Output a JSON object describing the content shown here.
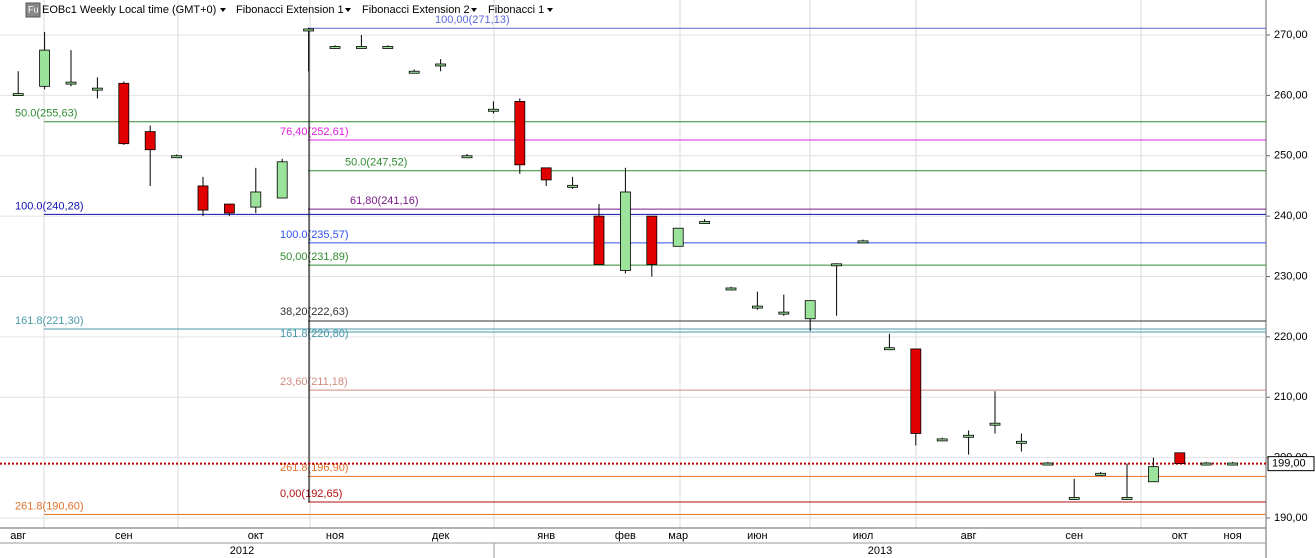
{
  "header": {
    "icon": "Fu",
    "symbol": "EOBc1 Weekly Local time (GMT+0)",
    "tools": [
      "Fibonacci Extension 1",
      "Fibonacci Extension 2",
      "Fibonacci 1"
    ]
  },
  "chart_data": {
    "type": "candlestick",
    "categories": [
      "авг",
      null,
      null,
      null,
      "сен",
      null,
      null,
      null,
      null,
      "окт",
      null,
      null,
      "ноя",
      null,
      null,
      null,
      "дек",
      null,
      null,
      null,
      "янв",
      null,
      null,
      "фев",
      null,
      "мар",
      null,
      null,
      "июн",
      null,
      null,
      null,
      "июл",
      null,
      null,
      null,
      "авг",
      null,
      null,
      null,
      "сен",
      null,
      null,
      null,
      "окт",
      null,
      "ноя"
    ],
    "open": [
      260,
      261.5,
      262,
      261,
      262,
      254,
      250,
      245,
      242,
      241.5,
      243,
      271,
      268,
      268,
      268,
      264,
      265,
      250,
      257.5,
      259,
      248,
      245,
      240,
      231,
      240,
      235,
      239,
      228,
      225,
      224,
      223,
      232,
      235.8,
      218,
      218,
      203,
      203.5,
      205.5,
      202.5,
      199,
      193.3,
      197.3,
      193.3,
      196,
      200.8,
      199,
      199
    ],
    "high": [
      264,
      270.5,
      267.5,
      263,
      262.3,
      255,
      250.2,
      246.5,
      242,
      248,
      249.5,
      271.2,
      268.3,
      270,
      268.3,
      264.3,
      266,
      250.3,
      259,
      259.5,
      248,
      246.5,
      242,
      248,
      240,
      238,
      239.5,
      228.3,
      227.5,
      227,
      226,
      232.2,
      236.1,
      220.5,
      218,
      203.3,
      204.5,
      211,
      204,
      199.3,
      196.5,
      197.6,
      199,
      200,
      200.8,
      199.3,
      199.3
    ],
    "low": [
      260,
      261,
      261.5,
      259.5,
      251.8,
      245,
      249.8,
      240,
      240,
      240.5,
      243,
      264,
      267.7,
      268,
      267.7,
      263.7,
      264,
      249.7,
      257,
      247,
      245,
      244.5,
      232,
      230.5,
      230,
      235,
      239,
      227.7,
      224.5,
      223.5,
      221,
      223.5,
      235.5,
      218,
      202,
      202.7,
      200.5,
      204,
      201,
      198.7,
      193,
      197,
      193,
      196,
      199,
      198.7,
      198.7
    ],
    "close": [
      260.3,
      267.5,
      262.2,
      261.2,
      252,
      251,
      250,
      241,
      240.5,
      244,
      249,
      271,
      268.1,
      268.1,
      268.1,
      264,
      265.2,
      250,
      257.7,
      248.5,
      246,
      245.1,
      232,
      244,
      232,
      238,
      239.1,
      228.1,
      225.1,
      224.1,
      226,
      232.1,
      235.9,
      218.2,
      204,
      203.1,
      203.7,
      205.7,
      202.7,
      199.1,
      193.4,
      197.4,
      193.4,
      198.5,
      199,
      199.1,
      199.1
    ],
    "up_color": "#9be39b",
    "down_color": "#e00000",
    "ylim": [
      188.34,
      275.8
    ],
    "yticks": [
      {
        "value": 190,
        "label": "190,00"
      },
      {
        "value": 200,
        "label": "200,00"
      },
      {
        "value": 210,
        "label": "210,00"
      },
      {
        "value": 220,
        "label": "220,00"
      },
      {
        "value": 230,
        "label": "230,00"
      },
      {
        "value": 240,
        "label": "240,00"
      },
      {
        "value": 250,
        "label": "250,00"
      },
      {
        "value": 260,
        "label": "260,00"
      },
      {
        "value": 270,
        "label": "270,00"
      }
    ],
    "years": [
      "2012",
      "2013"
    ],
    "levels": [
      {
        "label": "100,00(271,13)",
        "value": 271.13,
        "color": "#5a6ad8"
      },
      {
        "label": "50.0(255,63)",
        "value": 255.63,
        "color": "#2e8b2e"
      },
      {
        "label": "76,40(252,61)",
        "value": 252.61,
        "color": "#e020e0"
      },
      {
        "label": "50.0(247,52)",
        "value": 247.52,
        "color": "#2e8b2e"
      },
      {
        "label": "61,80(241,16)",
        "value": 241.16,
        "color": "#7a1a8a"
      },
      {
        "label": "100.0(240,28)",
        "value": 240.28,
        "color": "#1010b0"
      },
      {
        "label": "100.0(235,57)",
        "value": 235.57,
        "color": "#3050f0"
      },
      {
        "label": "50,00(231,89)",
        "value": 231.89,
        "color": "#2e8b2e"
      },
      {
        "label": "38,20(222,63)",
        "value": 222.63,
        "color": "#333333"
      },
      {
        "label": "161.8(221,30)",
        "value": 221.3,
        "color": "#4a9aaa"
      },
      {
        "label": "161.8(220,80)",
        "value": 220.8,
        "color": "#4a9aaa"
      },
      {
        "label": "23,60(211,18)",
        "value": 211.18,
        "color": "#d08a80"
      },
      {
        "label": "261.8(196,90)",
        "value": 196.9,
        "color": "#e0702a"
      },
      {
        "label": "0,00(192,65)",
        "value": 192.65,
        "color": "#b01010"
      },
      {
        "label": "261.8(190,60)",
        "value": 190.6,
        "color": "#e0702a"
      }
    ],
    "last_price": {
      "value": 199,
      "label": "199,00",
      "color": "#c00000"
    }
  }
}
